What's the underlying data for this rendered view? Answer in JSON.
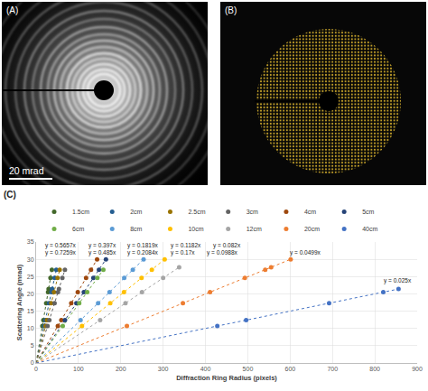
{
  "panels": {
    "A": {
      "label": "(A)",
      "scale_bar": "20 mrad"
    },
    "B": {
      "label": "(B)"
    },
    "C": {
      "label": "(C)"
    }
  },
  "chart_data": {
    "type": "scatter",
    "x_label": "Diffraction Ring Radius (pixels)",
    "y_label": "Scattering Angle (mrad)",
    "xlim": [
      0,
      900
    ],
    "xticks": [
      0,
      100,
      200,
      300,
      400,
      500,
      600,
      700,
      800,
      900
    ],
    "ylim": [
      0,
      35
    ],
    "yticks": [
      0,
      5,
      10,
      15,
      20,
      25,
      30,
      35
    ],
    "grid": true,
    "legend": "top",
    "marker": "circle",
    "line_style": "dotted",
    "series": [
      {
        "name": "1.5cm",
        "color": "#43682B",
        "x": [
          14.7,
          17.1,
          23.8,
          28.2,
          29.5,
          33.9,
          37.2
        ],
        "values": [
          10.7,
          12.4,
          17.3,
          20.5,
          21.4,
          24.6,
          27.0
        ],
        "trendline": {
          "slope": 0.7259,
          "label": "y = 0.7259x"
        }
      },
      {
        "name": "2cm",
        "color": "#255E91",
        "x": [
          18.9,
          21.9,
          30.6,
          36.2,
          37.8,
          43.5,
          47.7
        ],
        "values": [
          10.7,
          12.4,
          17.3,
          20.5,
          21.4,
          24.6,
          27.0
        ],
        "trendline": {
          "slope": 0.5657,
          "label": "y = 0.5657x"
        }
      },
      {
        "name": "2.5cm",
        "color": "#997300",
        "x": [
          22.1,
          25.6,
          35.7,
          42.3,
          50.7,
          55.7
        ],
        "values": [
          10.7,
          12.4,
          17.3,
          20.5,
          24.6,
          27.0
        ],
        "trendline": {
          "slope": 0.485,
          "label": "y = 0.485x"
        }
      },
      {
        "name": "3cm",
        "color": "#636363",
        "x": [
          27.0,
          31.2,
          43.6,
          51.6,
          53.9,
          62.0,
          68.0
        ],
        "values": [
          10.7,
          12.4,
          17.3,
          20.5,
          21.4,
          24.6,
          27.0
        ],
        "trendline": {
          "slope": 0.397,
          "label": "y = 0.397x"
        }
      },
      {
        "name": "4cm",
        "color": "#9E480E",
        "x": [
          51.3,
          59.5,
          83.0,
          98.4,
          118.0,
          129.6,
          144.0
        ],
        "values": [
          10.7,
          12.4,
          17.3,
          20.5,
          24.6,
          27.0,
          30.0
        ],
        "trendline": {
          "slope": 0.2084,
          "label": "y = 0.2084x"
        }
      },
      {
        "name": "5cm",
        "color": "#264478",
        "x": [
          68.2,
          95.1,
          112.7,
          135.2,
          148.4,
          164.9
        ],
        "values": [
          12.4,
          17.3,
          20.5,
          24.6,
          27.0,
          30.0
        ],
        "trendline": {
          "slope": 0.1819,
          "label": "y = 0.1819x"
        }
      },
      {
        "name": "6cm",
        "color": "#70AD47",
        "x": [
          62.9,
          101.8,
          120.6,
          144.7,
          158.8
        ],
        "values": [
          10.7,
          17.3,
          20.5,
          24.6,
          27.0
        ],
        "trendline": {
          "slope": 0.17,
          "label": "y = 0.17x"
        }
      },
      {
        "name": "8cm",
        "color": "#5B9BD5",
        "x": [
          104.9,
          146.4,
          173.4,
          208.1,
          228.4,
          253.8
        ],
        "values": [
          12.4,
          17.3,
          20.5,
          24.6,
          27.0,
          30.0
        ],
        "trendline": {
          "slope": 0.1182,
          "label": "y = 0.1182x"
        }
      },
      {
        "name": "10cm",
        "color": "#FFC000",
        "x": [
          108.3,
          175.1,
          207.5,
          249.0,
          273.3,
          303.6
        ],
        "values": [
          10.7,
          17.3,
          20.5,
          24.6,
          27.0,
          30.0
        ],
        "trendline": {
          "slope": 0.0988,
          "label": "y = 0.0988x"
        }
      },
      {
        "name": "12cm",
        "color": "#A5A5A5",
        "x": [
          151.2,
          211.0,
          250.0,
          300.0,
          337.8
        ],
        "values": [
          12.4,
          17.3,
          20.5,
          24.6,
          27.7
        ],
        "trendline": {
          "slope": 0.082,
          "label": "y = 0.082x"
        }
      },
      {
        "name": "20cm",
        "color": "#ED7D31",
        "x": [
          214.4,
          346.7,
          410.8,
          493.0,
          541.1,
          555.1,
          601.2
        ],
        "values": [
          10.7,
          17.3,
          20.5,
          24.6,
          27.0,
          27.7,
          30.0
        ],
        "trendline": {
          "slope": 0.0499,
          "label": "y = 0.0499x"
        }
      },
      {
        "name": "40cm",
        "color": "#4472C4",
        "x": [
          428.0,
          496.0,
          692.0,
          820.0,
          856.0
        ],
        "values": [
          10.7,
          12.4,
          17.3,
          20.5,
          21.4
        ],
        "trendline": {
          "slope": 0.025,
          "label": "y = 0.025x"
        }
      }
    ]
  }
}
